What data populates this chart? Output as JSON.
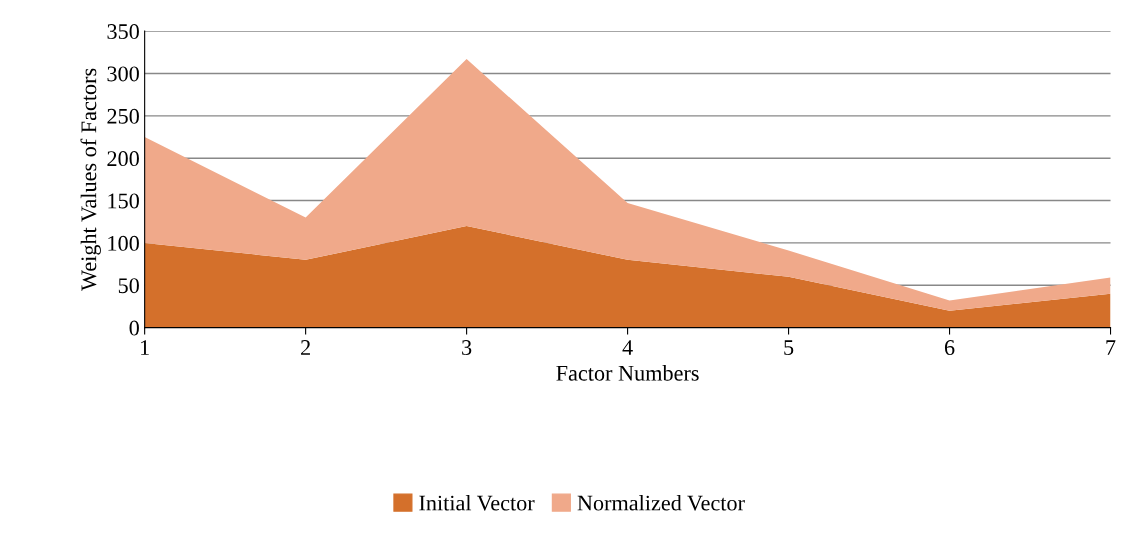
{
  "chart_data": {
    "type": "area",
    "stacked": true,
    "xlabel": "Factor Numbers",
    "ylabel": "Weight Values of Factors",
    "x": [
      1,
      2,
      3,
      4,
      5,
      6,
      7
    ],
    "series": [
      {
        "name": "Initial Vector",
        "color": "#d4702b",
        "values": [
          100,
          80,
          120,
          80,
          60,
          20,
          40
        ]
      },
      {
        "name": "Normalized Vector",
        "color": "#f0a98a",
        "values": [
          125,
          50,
          197,
          67,
          31,
          12,
          19
        ]
      }
    ],
    "xlim": [
      1,
      7
    ],
    "xticks": [
      1,
      2,
      3,
      4,
      5,
      6,
      7
    ],
    "ylim": [
      0,
      350
    ],
    "yticks": [
      0,
      50,
      100,
      150,
      200,
      250,
      300,
      350
    ],
    "grid": "y",
    "legend": "bottom"
  }
}
